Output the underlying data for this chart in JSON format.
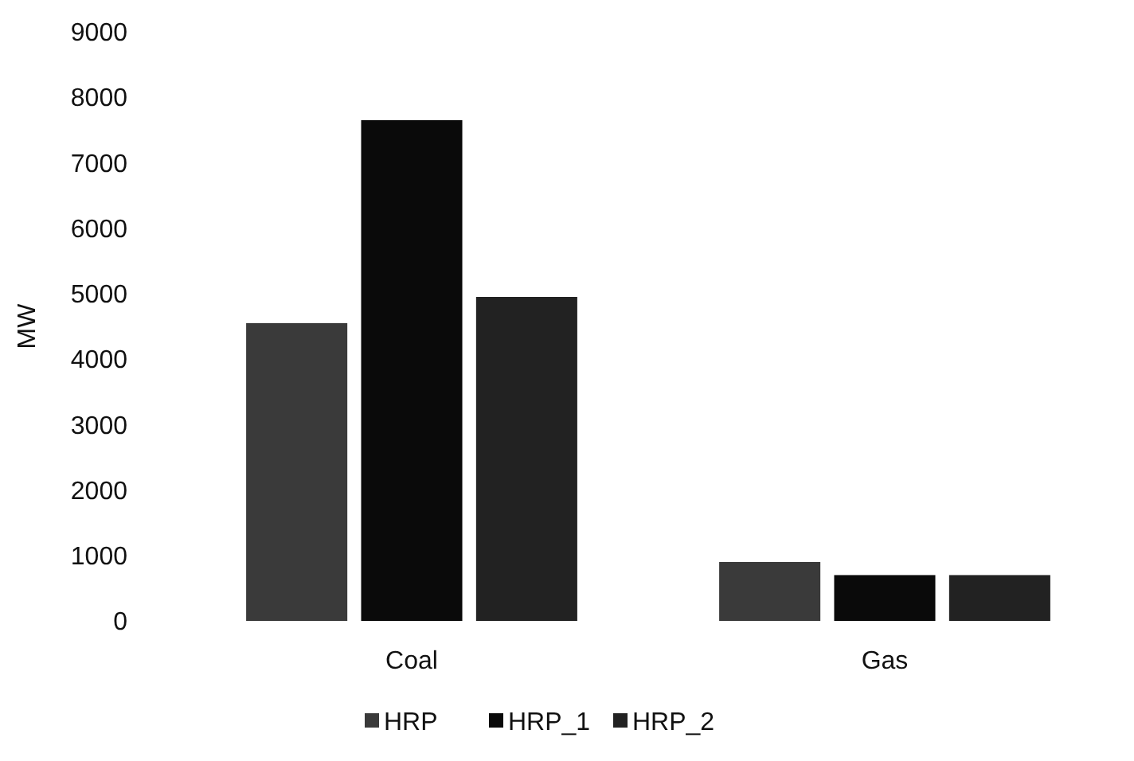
{
  "chart_data": {
    "type": "bar",
    "ylabel": "MW",
    "categories": [
      "Coal",
      "Gas"
    ],
    "series": [
      {
        "name": "HRP",
        "color": "#3a3a3a",
        "values": [
          4550,
          900
        ]
      },
      {
        "name": "HRP_1",
        "color": "#0a0a0a",
        "values": [
          7650,
          700
        ]
      },
      {
        "name": "HRP_2",
        "color": "#222222",
        "values": [
          4950,
          700
        ]
      }
    ],
    "ylim": [
      0,
      9000
    ],
    "yticks": [
      0,
      1000,
      2000,
      3000,
      4000,
      5000,
      6000,
      7000,
      8000,
      9000
    ],
    "grid": false,
    "legend": "bottom"
  }
}
